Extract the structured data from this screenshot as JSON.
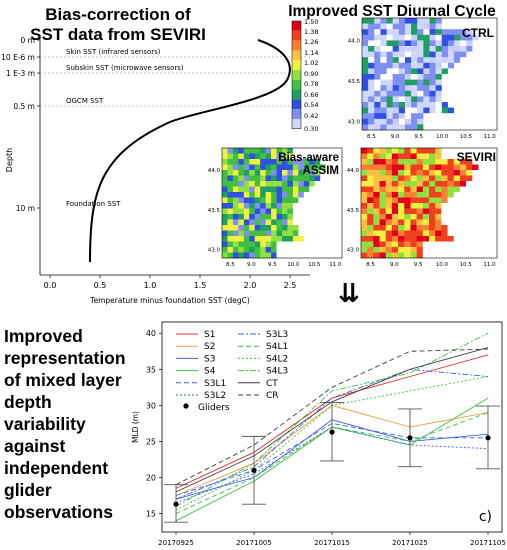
{
  "panel_a": {
    "title_line1": "Bias-correction of",
    "title_line2": "SST data from SEVIRI",
    "depth_ticks": [
      "0 m",
      "10 E-6 m",
      "1 E-3 m",
      "0.5 m",
      "10 m"
    ],
    "layer_labels": {
      "skin": "Skin SST (infrared sensors)",
      "subskin": "Subskin SST (microwave sensors)",
      "ogcm": "OGCM SST",
      "foundation": "Foundation SST"
    },
    "x_ticks": [
      "0.0",
      "0.5",
      "1.0",
      "1.5",
      "2.0",
      "2.5"
    ],
    "xlabel": "Temperature minus foundation SST (degC)",
    "ylabel": "Depth"
  },
  "panel_b": {
    "title": "Improved SST Diurnal Cycle",
    "colorbar_ticks": [
      "1.50",
      "1.38",
      "1.26",
      "1.14",
      "1.02",
      "0.90",
      "0.78",
      "0.66",
      "0.54",
      "0.42",
      "0.30"
    ],
    "maps": [
      {
        "label": "CTRL",
        "lat_ticks": [
          "44.0",
          "43.5",
          "43.0"
        ],
        "lon_ticks": [
          "8.5",
          "9.0",
          "9.5",
          "10.0",
          "10.5",
          "11.0"
        ]
      },
      {
        "label": "Bias-aware ASSIM",
        "label_line1": "Bias-aware",
        "label_line2": "ASSIM",
        "lat_ticks": [
          "44.0",
          "43.5",
          "43.0"
        ],
        "lon_ticks": [
          "8.5",
          "9.0",
          "9.5",
          "10.0",
          "10.5",
          "11.0"
        ]
      },
      {
        "label": "SEVIRI",
        "lat_ticks": [
          "44.0",
          "43.5",
          "43.0"
        ],
        "lon_ticks": [
          "8.5",
          "9.0",
          "9.5",
          "10.0",
          "10.5",
          "11.0"
        ]
      }
    ],
    "arrow": "⇊"
  },
  "panel_c": {
    "text_lines": [
      "Improved",
      "representation",
      "of mixed layer",
      "depth",
      "variability",
      "against",
      "independent",
      "glider",
      "observations"
    ],
    "panel_label": "c)"
  },
  "chart_data": {
    "type": "line",
    "x": [
      "20170925",
      "20171005",
      "20171015",
      "20171025",
      "20171105"
    ],
    "ylabel": "MLD (m)",
    "ylim": [
      13,
      41
    ],
    "yticks": [
      15,
      20,
      25,
      30,
      35,
      40
    ],
    "series": [
      {
        "name": "S1",
        "color": "#e03030",
        "dash": "solid",
        "values": [
          18.5,
          23.5,
          31,
          34,
          37
        ]
      },
      {
        "name": "S2",
        "color": "#f0a040",
        "dash": "solid",
        "values": [
          17.5,
          22,
          30,
          27,
          29
        ]
      },
      {
        "name": "S3",
        "color": "#4060e0",
        "dash": "solid",
        "values": [
          17,
          20,
          28,
          25,
          26
        ]
      },
      {
        "name": "S4",
        "color": "#40c040",
        "dash": "solid",
        "values": [
          14,
          19.5,
          27,
          24.5,
          31
        ]
      },
      {
        "name": "S3L1",
        "color": "#4060e0",
        "dash": "5,3",
        "values": [
          17.5,
          21,
          27.5,
          25.5,
          25.5
        ]
      },
      {
        "name": "S3L2",
        "color": "#4060e0",
        "dash": "2,2",
        "values": [
          16.5,
          20.5,
          27,
          24.5,
          24
        ]
      },
      {
        "name": "S3L3",
        "color": "#4060e0",
        "dash": "6,2,2,2",
        "values": [
          17,
          21.5,
          31,
          35,
          34
        ]
      },
      {
        "name": "S4L1",
        "color": "#40c040",
        "dash": "5,3",
        "values": [
          15,
          20,
          27,
          25,
          29
        ]
      },
      {
        "name": "S4L2",
        "color": "#40c040",
        "dash": "2,2",
        "values": [
          15.5,
          21,
          30,
          32,
          34
        ]
      },
      {
        "name": "S4L3",
        "color": "#40c040",
        "dash": "6,2,2,2",
        "values": [
          16,
          22,
          32,
          34.5,
          40
        ]
      },
      {
        "name": "CT",
        "color": "#404040",
        "dash": "solid",
        "values": [
          18,
          23,
          30.5,
          35,
          38
        ]
      },
      {
        "name": "CR",
        "color": "#404040",
        "dash": "5,3",
        "values": [
          19,
          24.5,
          32.5,
          37.5,
          37.8
        ]
      }
    ],
    "gliders": {
      "name": "Gliders",
      "values": [
        16.3,
        21,
        26.3,
        25.5,
        25.5
      ],
      "err_low": [
        13.8,
        16.3,
        22.3,
        21.5,
        21.2
      ],
      "err_high": [
        19,
        25.7,
        30.4,
        29.5,
        29.9
      ]
    }
  }
}
